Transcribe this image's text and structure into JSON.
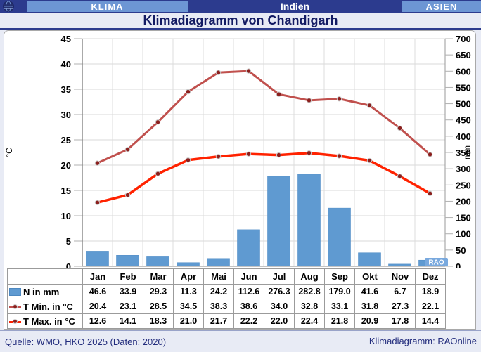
{
  "header": {
    "brand": "KLIMA",
    "country": "Indien",
    "region": "ASIEN"
  },
  "title": "Klimadiagramm von Chandigarh",
  "watermark": "RAO",
  "footer": {
    "source": "Quelle: WMO, HKO 2025 (Daten: 2020)",
    "credit": "Klimadiagramm: RAOnline"
  },
  "colors": {
    "navy": "#2c3b8e",
    "light_blue": "#6d96d4",
    "bar_blue": "#5f9ad1",
    "tmin_line": "#c0504d",
    "tmax_line": "#ff2200",
    "dot": "#8c1f1d"
  },
  "chart_data": {
    "type": "bar+line combo",
    "title": "Klimadiagramm von Chandigarh",
    "categories": [
      "Jan",
      "Feb",
      "Mar",
      "Apr",
      "Mai",
      "Jun",
      "Jul",
      "Aug",
      "Sep",
      "Okt",
      "Nov",
      "Dez"
    ],
    "series": [
      {
        "name": "N in mm",
        "type": "bar",
        "axis": "right",
        "color": "#5f9ad1",
        "width": 0,
        "values": [
          "46.6",
          "33.9",
          "29.3",
          "11.3",
          "24.2",
          "112.6",
          "276.3",
          "282.8",
          "179.0",
          "41.6",
          "6.7",
          "18.9"
        ]
      },
      {
        "name": "T Min. in °C",
        "type": "line",
        "axis": "left",
        "color": "#c0504d",
        "width": 3,
        "values": [
          "20.4",
          "23.1",
          "28.5",
          "34.5",
          "38.3",
          "38.6",
          "34.0",
          "32.8",
          "33.1",
          "31.8",
          "27.3",
          "22.1"
        ]
      },
      {
        "name": "T Max. in °C",
        "type": "line",
        "axis": "left",
        "color": "#ff2200",
        "width": 3.5,
        "values": [
          "12.6",
          "14.1",
          "18.3",
          "21.0",
          "21.7",
          "22.2",
          "22.0",
          "22.4",
          "21.8",
          "20.9",
          "17.8",
          "14.4"
        ]
      }
    ],
    "left_axis": {
      "label": "°C",
      "min": 0,
      "max": 45,
      "step": 5
    },
    "right_axis": {
      "label": "mm",
      "min": 0,
      "max": 700,
      "step": 50
    },
    "grid": true,
    "legend_position": "table-below"
  }
}
